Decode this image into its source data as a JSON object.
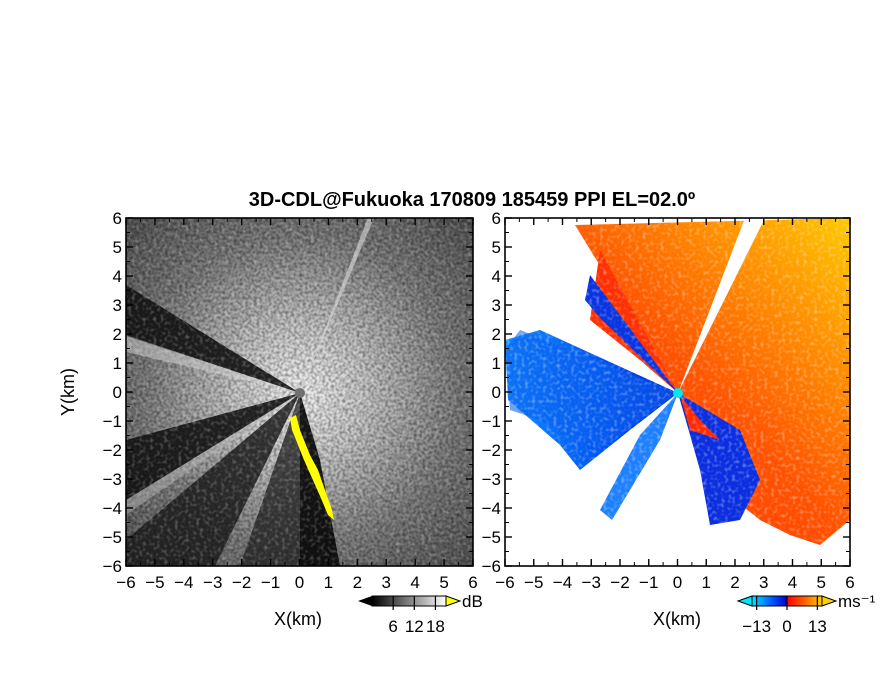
{
  "title": "3D-CDL@Fukuoka 170809 185459 PPI EL=02.0º",
  "chart_data": [
    {
      "type": "heatmap",
      "name": "reflectivity-ppi",
      "xlabel": "X(km)",
      "ylabel": "Y(km)",
      "xlim": [
        -6,
        6
      ],
      "ylim": [
        -6,
        6
      ],
      "xticks": [
        "−6",
        "−5",
        "−4",
        "−3",
        "−2",
        "−1",
        "0",
        "1",
        "2",
        "3",
        "4",
        "5",
        "6"
      ],
      "yticks": [
        "6",
        "5",
        "4",
        "3",
        "2",
        "1",
        "0",
        "−1",
        "−2",
        "−3",
        "−4",
        "−5",
        "−6"
      ],
      "colorbar": {
        "unit": "dB",
        "ticks": [
          "6",
          "12",
          "18"
        ],
        "range": [
          0,
          21
        ],
        "colors": [
          "#000000",
          "#ffffff"
        ]
      },
      "highlight_color": "#ffff00",
      "radar_marker_color": "#707070"
    },
    {
      "type": "heatmap",
      "name": "doppler-velocity-ppi",
      "xlabel": "X(km)",
      "ylabel": "",
      "xlim": [
        -6,
        6
      ],
      "ylim": [
        -6,
        6
      ],
      "xticks": [
        "−6",
        "−5",
        "−4",
        "−3",
        "−2",
        "−1",
        "0",
        "1",
        "2",
        "3",
        "4",
        "5",
        "6"
      ],
      "yticks": [
        "6",
        "5",
        "4",
        "3",
        "2",
        "1",
        "0",
        "−1",
        "−2",
        "−3",
        "−4",
        "−5",
        "−6"
      ],
      "colorbar": {
        "unit": "ms⁻¹",
        "ticks": [
          "−13",
          "0",
          "13"
        ],
        "range": [
          -15,
          15
        ],
        "colors": [
          "#00e5ff",
          "#0050ff",
          "#0000c8",
          "#ff0000",
          "#ff6000",
          "#ffd000"
        ]
      },
      "radar_marker_color": "#00e8e8"
    }
  ]
}
